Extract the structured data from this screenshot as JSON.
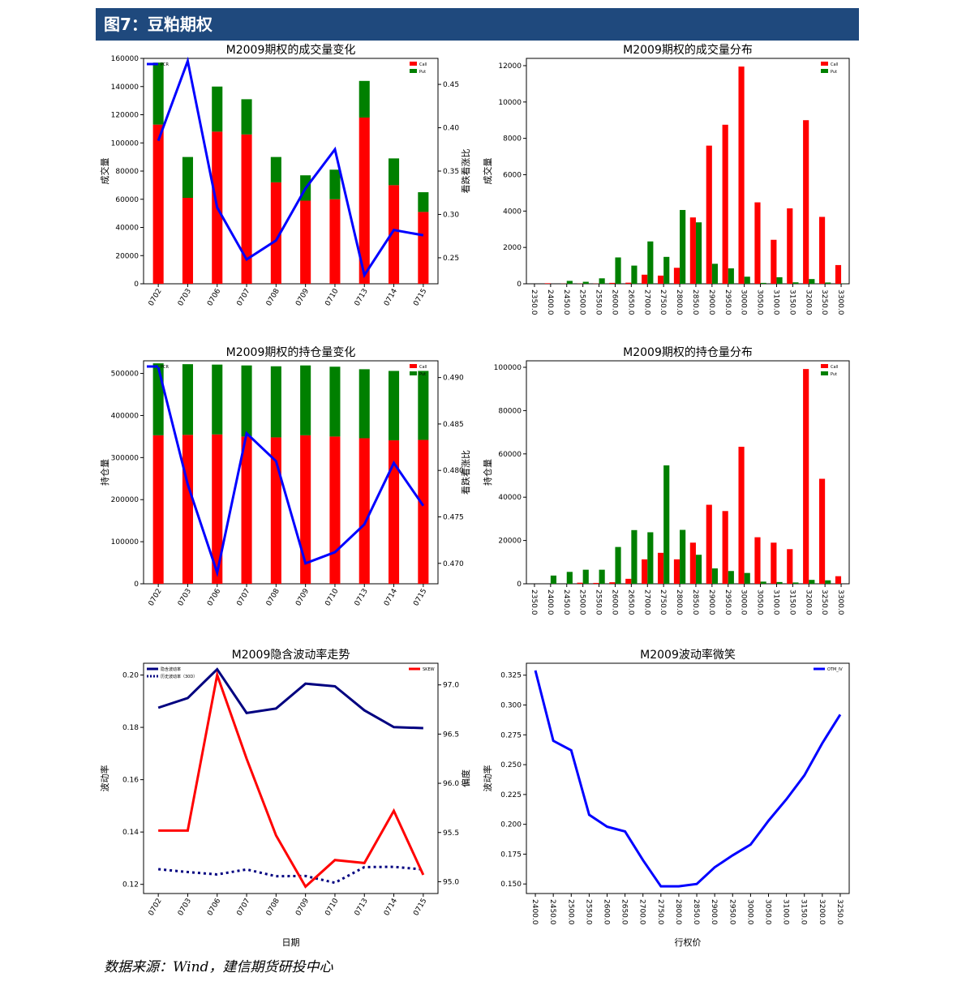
{
  "header": {
    "title": "图7：豆粕期权"
  },
  "source": "数据来源：Wind，建信期货研投中心",
  "colors": {
    "call": "#ff0000",
    "put": "#008000",
    "pcr": "#0000ff",
    "navy": "#000080",
    "header": "#1f497d"
  },
  "chart_data": [
    {
      "type": "bar",
      "title": "M2009期权的成交量变化",
      "stacked": true,
      "categories": [
        "0702",
        "0703",
        "0706",
        "0707",
        "0708",
        "0709",
        "0710",
        "0713",
        "0714",
        "0715"
      ],
      "series": [
        {
          "name": "Call",
          "values": [
            113000,
            61000,
            108000,
            106000,
            72000,
            59000,
            60000,
            118000,
            70000,
            51000
          ]
        },
        {
          "name": "Put",
          "values": [
            44000,
            29000,
            32000,
            25000,
            18000,
            18000,
            21000,
            26000,
            19000,
            14000
          ]
        }
      ],
      "line": {
        "name": "PCR",
        "values": [
          0.385,
          0.477,
          0.308,
          0.248,
          0.27,
          0.33,
          0.375,
          0.23,
          0.282,
          0.276
        ]
      },
      "ylabel": "成交量",
      "y2label": "看跌看涨比",
      "ylim": [
        0,
        160000
      ],
      "yticks": [
        0,
        20000,
        40000,
        60000,
        80000,
        100000,
        120000,
        140000,
        160000
      ],
      "y2lim": [
        0.22,
        0.48
      ],
      "y2ticks": [
        0.25,
        0.3,
        0.35,
        0.4,
        0.45
      ],
      "legend": "top"
    },
    {
      "type": "bar",
      "title": "M2009期权的成交量分布",
      "grouped": true,
      "categories": [
        "2350.0",
        "2400.0",
        "2450.0",
        "2500.0",
        "2550.0",
        "2600.0",
        "2650.0",
        "2700.0",
        "2750.0",
        "2800.0",
        "2850.0",
        "2900.0",
        "2950.0",
        "3000.0",
        "3050.0",
        "3100.0",
        "3150.0",
        "3200.0",
        "3250.0",
        "3300.0"
      ],
      "series": [
        {
          "name": "Call",
          "values": [
            0,
            30,
            10,
            10,
            10,
            50,
            60,
            500,
            450,
            880,
            3650,
            7600,
            8750,
            11950,
            4480,
            2420,
            4150,
            9000,
            3680,
            1030
          ]
        },
        {
          "name": "Put",
          "values": [
            0,
            0,
            160,
            110,
            300,
            1450,
            1000,
            2330,
            1480,
            4060,
            3380,
            1100,
            850,
            390,
            50,
            360,
            80,
            260,
            70,
            10
          ]
        }
      ],
      "ylabel": "成交量",
      "ylim": [
        0,
        12400
      ],
      "yticks": [
        0,
        2000,
        4000,
        6000,
        8000,
        10000,
        12000
      ],
      "legend": "top-right"
    },
    {
      "type": "bar",
      "title": "M2009期权的持仓量变化",
      "stacked": true,
      "categories": [
        "0702",
        "0703",
        "0706",
        "0707",
        "0708",
        "0709",
        "0710",
        "0713",
        "0714",
        "0715"
      ],
      "series": [
        {
          "name": "Call",
          "values": [
            353000,
            354000,
            355000,
            350000,
            348000,
            353000,
            350000,
            346000,
            341000,
            342000
          ]
        },
        {
          "name": "Put",
          "values": [
            171000,
            168000,
            166000,
            169000,
            169000,
            166000,
            166000,
            164000,
            165000,
            164000
          ]
        }
      ],
      "line": {
        "name": "PCR",
        "values": [
          0.4911,
          0.4785,
          0.469,
          0.484,
          0.481,
          0.47,
          0.4712,
          0.4742,
          0.4808,
          0.4762
        ]
      },
      "ylabel": "持仓量",
      "y2label": "看跌看涨比",
      "ylim": [
        0,
        530000
      ],
      "yticks": [
        0,
        100000,
        200000,
        300000,
        400000,
        500000
      ],
      "y2lim": [
        0.4678,
        0.4918
      ],
      "y2ticks": [
        0.47,
        0.475,
        0.48,
        0.485,
        0.49
      ],
      "legend": "top"
    },
    {
      "type": "bar",
      "title": "M2009期权的持仓量分布",
      "grouped": true,
      "categories": [
        "2350.0",
        "2400.0",
        "2450.0",
        "2500.0",
        "2550.0",
        "2600.0",
        "2650.0",
        "2700.0",
        "2750.0",
        "2800.0",
        "2850.0",
        "2900.0",
        "2950.0",
        "3000.0",
        "3050.0",
        "3100.0",
        "3150.0",
        "3200.0",
        "3250.0",
        "3300.0"
      ],
      "series": [
        {
          "name": "Call",
          "values": [
            0,
            0,
            0,
            500,
            400,
            700,
            2300,
            11300,
            14300,
            11300,
            19000,
            36500,
            33600,
            63300,
            21500,
            19000,
            16000,
            99200,
            48500,
            3500
          ]
        },
        {
          "name": "Put",
          "values": [
            0,
            3800,
            5500,
            6500,
            6500,
            17000,
            24800,
            23800,
            54700,
            24900,
            13400,
            7100,
            5900,
            5000,
            1000,
            800,
            600,
            1800,
            1600,
            0
          ]
        }
      ],
      "ylabel": "持仓量",
      "ylim": [
        0,
        103000
      ],
      "yticks": [
        0,
        20000,
        40000,
        60000,
        80000,
        100000
      ],
      "legend": "top-right"
    },
    {
      "type": "line",
      "title": "M2009隐含波动率走势",
      "categories": [
        "0702",
        "0703",
        "0706",
        "0707",
        "0708",
        "0709",
        "0710",
        "0713",
        "0714",
        "0715"
      ],
      "series": [
        {
          "name": "隐含波动率",
          "values": [
            0.1875,
            0.1912,
            0.2022,
            0.1855,
            0.1872,
            0.1967,
            0.1957,
            0.1865,
            0.1801,
            0.1797
          ],
          "axis": "left",
          "style": "solid-navy"
        },
        {
          "name": "历史波动率（30D）",
          "values": [
            0.1258,
            0.1247,
            0.1238,
            0.1257,
            0.1231,
            0.1232,
            0.1206,
            0.1266,
            0.1267,
            0.1257
          ],
          "axis": "left",
          "style": "dotted-navy"
        },
        {
          "name": "SKEW",
          "values": [
            95.52,
            95.52,
            97.1,
            96.25,
            95.47,
            94.95,
            95.22,
            95.19,
            95.72,
            95.07
          ],
          "axis": "right",
          "style": "solid-red"
        }
      ],
      "xlabel": "日期",
      "ylabel": "波动率",
      "y2label": "偏度",
      "ylim": [
        0.1165,
        0.2045
      ],
      "yticks": [
        0.12,
        0.14,
        0.16,
        0.18,
        0.2
      ],
      "y2lim": [
        94.88,
        97.22
      ],
      "y2ticks": [
        95.0,
        95.5,
        96.0,
        96.5,
        97.0
      ],
      "legend": "top"
    },
    {
      "type": "line",
      "title": "M2009波动率微笑",
      "categories": [
        "2400.0",
        "2450.0",
        "2500.0",
        "2550.0",
        "2600.0",
        "2650.0",
        "2700.0",
        "2750.0",
        "2800.0",
        "2850.0",
        "2900.0",
        "2950.0",
        "3000.0",
        "3050.0",
        "3100.0",
        "3150.0",
        "3200.0",
        "3250.0"
      ],
      "series": [
        {
          "name": "OTM_IV",
          "values": [
            0.329,
            0.27,
            0.262,
            0.208,
            0.198,
            0.194,
            0.17,
            0.148,
            0.148,
            0.15,
            0.164,
            0.174,
            0.183,
            0.203,
            0.221,
            0.241,
            0.268,
            0.292
          ]
        }
      ],
      "xlabel": "行权价",
      "ylabel": "波动率",
      "ylim": [
        0.142,
        0.335
      ],
      "yticks": [
        0.15,
        0.175,
        0.2,
        0.225,
        0.25,
        0.275,
        0.3,
        0.325
      ],
      "legend": "top-right"
    }
  ]
}
